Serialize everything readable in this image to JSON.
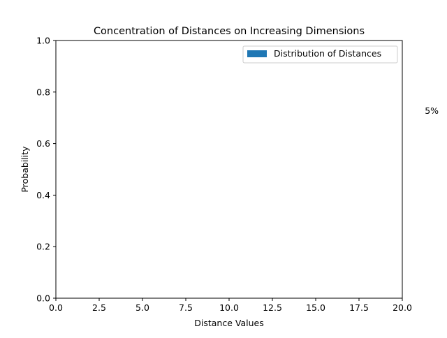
{
  "chart_data": {
    "type": "bar",
    "title": "Concentration of Distances on Increasing Dimensions",
    "xlabel": "Distance Values",
    "ylabel": "Probability",
    "xlim": [
      0,
      20
    ],
    "ylim": [
      0,
      1
    ],
    "x_ticks": [
      0,
      2.5,
      5,
      7.5,
      10,
      12.5,
      15,
      17.5,
      20
    ],
    "x_tick_labels": [
      "0.0",
      "2.5",
      "5.0",
      "7.5",
      "10.0",
      "12.5",
      "15.0",
      "17.5",
      "20.0"
    ],
    "y_ticks": [
      0,
      0.2,
      0.4,
      0.6,
      0.8,
      1.0
    ],
    "y_tick_labels": [
      "0.0",
      "0.2",
      "0.4",
      "0.6",
      "0.8",
      "1.0"
    ],
    "grid": false,
    "legend_position": "upper right",
    "series": [
      {
        "name": "Distribution of Distances",
        "color": "#1f77b4",
        "values": []
      }
    ],
    "annotations": [
      {
        "text": "5%",
        "x": 21.7,
        "y": 0.715
      }
    ]
  }
}
